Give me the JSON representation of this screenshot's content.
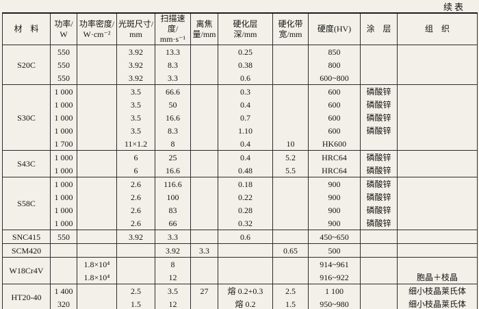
{
  "page": {
    "continued_label": "续表"
  },
  "table": {
    "columns": [
      {
        "key": "material",
        "label": "材　料"
      },
      {
        "key": "power",
        "label": "功率/\nW"
      },
      {
        "key": "power_density",
        "label": "功率密度/\nW·cm⁻²"
      },
      {
        "key": "spot_size",
        "label": "光斑尺寸/\nmm"
      },
      {
        "key": "scan_speed",
        "label": "扫描速度/\nmm·s⁻¹"
      },
      {
        "key": "defocus",
        "label": "离焦\n量/mm"
      },
      {
        "key": "layer_depth",
        "label": "硬化层\n深/mm"
      },
      {
        "key": "band_width",
        "label": "硬化带\n宽/mm"
      },
      {
        "key": "hardness",
        "label": "硬度(HV)"
      },
      {
        "key": "coating",
        "label": "涂　层"
      },
      {
        "key": "structure",
        "label": "组　织"
      }
    ],
    "groups": [
      {
        "material": "S20C",
        "rows": [
          {
            "power": "550",
            "spot_size": "3.92",
            "scan_speed": "13.3",
            "layer_depth": "0.25",
            "hardness": "850"
          },
          {
            "power": "550",
            "spot_size": "3.92",
            "scan_speed": "8.3",
            "layer_depth": "0.38",
            "hardness": "800"
          },
          {
            "power": "550",
            "spot_size": "3.92",
            "scan_speed": "3.3",
            "layer_depth": "0.6",
            "hardness": "600~800"
          }
        ]
      },
      {
        "material": "S30C",
        "rows": [
          {
            "power": "1 000",
            "spot_size": "3.5",
            "scan_speed": "66.6",
            "layer_depth": "0.3",
            "hardness": "600",
            "coating": "磷酸锌"
          },
          {
            "power": "1 000",
            "spot_size": "3.5",
            "scan_speed": "50",
            "layer_depth": "0.4",
            "hardness": "600",
            "coating": "磷酸锌"
          },
          {
            "power": "1 000",
            "spot_size": "3.5",
            "scan_speed": "16.6",
            "layer_depth": "0.7",
            "hardness": "600",
            "coating": "磷酸锌"
          },
          {
            "power": "1 000",
            "spot_size": "3.5",
            "scan_speed": "8.3",
            "layer_depth": "1.10",
            "hardness": "600",
            "coating": "磷酸锌"
          },
          {
            "power": "1 700",
            "spot_size": "11×1.2",
            "scan_speed": "8",
            "layer_depth": "0.4",
            "band_width": "10",
            "hardness": "HK600"
          }
        ]
      },
      {
        "material": "S43C",
        "rows": [
          {
            "power": "1 000",
            "spot_size": "6",
            "scan_speed": "25",
            "layer_depth": "0.4",
            "band_width": "5.2",
            "hardness": "HRC64",
            "coating": "磷酸锌"
          },
          {
            "power": "1 000",
            "spot_size": "6",
            "scan_speed": "16.6",
            "layer_depth": "0.48",
            "band_width": "5.5",
            "hardness": "HRC64",
            "coating": "磷酸锌"
          }
        ]
      },
      {
        "material": "S58C",
        "rows": [
          {
            "power": "1 000",
            "spot_size": "2.6",
            "scan_speed": "116.6",
            "layer_depth": "0.18",
            "hardness": "900",
            "coating": "磷酸锌"
          },
          {
            "power": "1 000",
            "spot_size": "2.6",
            "scan_speed": "100",
            "layer_depth": "0.22",
            "hardness": "900",
            "coating": "磷酸锌"
          },
          {
            "power": "1 000",
            "spot_size": "2.6",
            "scan_speed": "83",
            "layer_depth": "0.28",
            "hardness": "900",
            "coating": "磷酸锌"
          },
          {
            "power": "1 000",
            "spot_size": "2.6",
            "scan_speed": "66",
            "layer_depth": "0.32",
            "hardness": "900",
            "coating": "磷酸锌"
          }
        ]
      },
      {
        "material": "SNC415",
        "rows": [
          {
            "power": "550",
            "spot_size": "3.92",
            "scan_speed": "3.3",
            "layer_depth": "0.6",
            "hardness": "450~650"
          }
        ]
      },
      {
        "material": "SCM420",
        "rows": [
          {
            "scan_speed": "3.92",
            "defocus": "3.3",
            "band_width": "0.65",
            "hardness": "500"
          }
        ]
      },
      {
        "material": "W18Cr4V",
        "rows": [
          {
            "power_density": "1.8×10⁴",
            "scan_speed": "8",
            "hardness": "914~961"
          },
          {
            "power_density": "1.8×10⁴",
            "scan_speed": "12",
            "hardness": "916~922",
            "structure": "胞晶＋枝晶"
          }
        ]
      },
      {
        "material": "HT20-40",
        "rows": [
          {
            "power": "1 400",
            "spot_size": "2.5",
            "scan_speed": "3.5",
            "defocus": "27",
            "layer_depth": "熔 0.2+0.3",
            "band_width": "2.5",
            "hardness": "1 100",
            "structure": "细小枝晶莱氏体"
          },
          {
            "power": "320",
            "spot_size": "1.5",
            "scan_speed": "12",
            "layer_depth": "熔 0.2",
            "band_width": "1.5",
            "hardness": "950~980",
            "structure": "细小枝晶莱氏体"
          }
        ]
      }
    ]
  }
}
